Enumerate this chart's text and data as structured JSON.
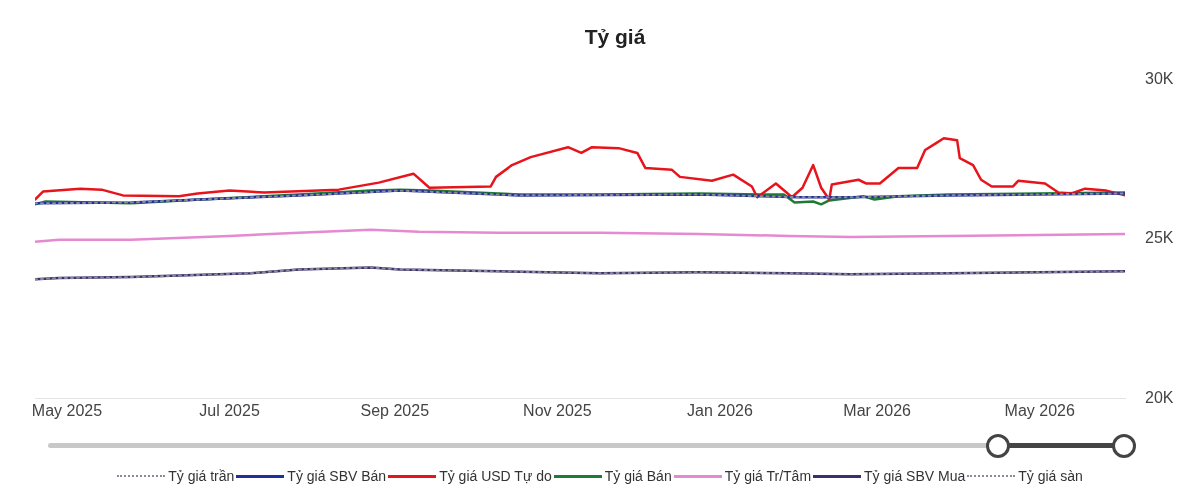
{
  "chart_data": {
    "type": "line",
    "title": "Tỷ giá",
    "xlim": [
      "2025-04-19",
      "2026-06-02"
    ],
    "xticks": [
      {
        "value": "2025-05-01",
        "label": "May 2025"
      },
      {
        "value": "2025-07-01",
        "label": "Jul 2025"
      },
      {
        "value": "2025-09-01",
        "label": "Sep 2025"
      },
      {
        "value": "2025-11-01",
        "label": "Nov 2025"
      },
      {
        "value": "2026-01-01",
        "label": "Jan 2026"
      },
      {
        "value": "2026-03-01",
        "label": "Mar 2026"
      },
      {
        "value": "2026-05-01",
        "label": "May 2026"
      }
    ],
    "ylim": [
      20000,
      30000
    ],
    "yticks": [
      {
        "value": 20000,
        "label": "20K"
      },
      {
        "value": 25000,
        "label": "25K"
      },
      {
        "value": 30000,
        "label": "30K"
      }
    ],
    "grid": false,
    "legend": "bottom",
    "series": [
      {
        "name": "Tỷ giá trần",
        "color": "#8a8a9a",
        "line_style": "dotted",
        "x": [
          "2025-04-19",
          "2025-05-25",
          "2025-06-20",
          "2025-07-27",
          "2025-09-03",
          "2025-10-18",
          "2025-12-24",
          "2026-01-31",
          "2026-02-19",
          "2026-03-28",
          "2026-06-02"
        ],
        "values": [
          26110,
          26140,
          26230,
          26360,
          26510,
          26360,
          26390,
          26300,
          26300,
          26360,
          26420
        ]
      },
      {
        "name": "Tỷ giá SBV Bán",
        "color": "#1f2f9c",
        "line_style": "solid",
        "x": [
          "2025-04-19",
          "2025-05-25",
          "2025-06-20",
          "2025-07-27",
          "2025-09-03",
          "2025-10-18",
          "2025-12-24",
          "2026-01-31",
          "2026-02-19",
          "2026-03-28",
          "2026-06-02"
        ],
        "values": [
          26110,
          26140,
          26230,
          26360,
          26510,
          26360,
          26390,
          26300,
          26300,
          26360,
          26420
        ]
      },
      {
        "name": "Tỷ giá USD Tự do",
        "color": "#e8141c",
        "line_style": "solid",
        "x": [
          "2025-04-19",
          "2025-04-22",
          "2025-05-06",
          "2025-05-14",
          "2025-05-22",
          "2025-06-12",
          "2025-06-19",
          "2025-07-01",
          "2025-07-14",
          "2025-08-11",
          "2025-08-26",
          "2025-09-08",
          "2025-09-14",
          "2025-10-07",
          "2025-10-09",
          "2025-10-15",
          "2025-10-22",
          "2025-11-05",
          "2025-11-10",
          "2025-11-14",
          "2025-11-24",
          "2025-12-01",
          "2025-12-04",
          "2025-12-14",
          "2025-12-17",
          "2025-12-29",
          "2026-01-06",
          "2026-01-13",
          "2026-01-15",
          "2026-01-22",
          "2026-01-26",
          "2026-01-28",
          "2026-02-01",
          "2026-02-05",
          "2026-02-08",
          "2026-02-11",
          "2026-02-12",
          "2026-02-22",
          "2026-02-25",
          "2026-03-02",
          "2026-03-09",
          "2026-03-16",
          "2026-03-19",
          "2026-03-23",
          "2026-03-26",
          "2026-03-31",
          "2026-04-01",
          "2026-04-06",
          "2026-04-09",
          "2026-04-13",
          "2026-04-21",
          "2026-04-23",
          "2026-05-03",
          "2026-05-08",
          "2026-05-13",
          "2026-05-18",
          "2026-05-26",
          "2026-06-02"
        ],
        "values": [
          26230,
          26480,
          26570,
          26540,
          26360,
          26330,
          26420,
          26510,
          26450,
          26540,
          26760,
          27040,
          26600,
          26640,
          26940,
          27310,
          27560,
          27870,
          27690,
          27870,
          27840,
          27690,
          27220,
          27160,
          26940,
          26820,
          27010,
          26640,
          26300,
          26730,
          26450,
          26300,
          26600,
          27310,
          26600,
          26230,
          26700,
          26850,
          26730,
          26730,
          27220,
          27220,
          27780,
          27990,
          28150,
          28090,
          27530,
          27310,
          26850,
          26640,
          26640,
          26820,
          26730,
          26450,
          26420,
          26570,
          26510,
          26360
        ]
      },
      {
        "name": "Tỷ giá Bán",
        "color": "#1e7b34",
        "line_style": "solid",
        "x": [
          "2025-04-19",
          "2025-04-23",
          "2025-05-25",
          "2025-06-20",
          "2025-07-27",
          "2025-08-23",
          "2025-09-03",
          "2025-09-14",
          "2025-10-18",
          "2025-11-17",
          "2025-12-24",
          "2026-01-16",
          "2026-01-25",
          "2026-01-29",
          "2026-02-05",
          "2026-02-08",
          "2026-02-11",
          "2026-02-24",
          "2026-02-28",
          "2026-03-09",
          "2026-03-28",
          "2026-06-02"
        ],
        "values": [
          26080,
          26170,
          26110,
          26230,
          26390,
          26510,
          26540,
          26510,
          26390,
          26390,
          26420,
          26390,
          26390,
          26140,
          26170,
          26080,
          26200,
          26330,
          26230,
          26330,
          26390,
          26450
        ]
      },
      {
        "name": "Tỷ giá Tr/Tâm",
        "color": "#e58ad0",
        "line_style": "solid",
        "x": [
          "2025-04-19",
          "2025-04-28",
          "2025-05-25",
          "2025-07-01",
          "2025-07-27",
          "2025-08-23",
          "2025-09-10",
          "2025-10-10",
          "2025-11-17",
          "2025-12-24",
          "2026-01-27",
          "2026-02-19",
          "2026-03-28",
          "2026-06-02"
        ],
        "values": [
          24910,
          24970,
          24970,
          25090,
          25190,
          25280,
          25220,
          25190,
          25190,
          25150,
          25090,
          25060,
          25090,
          25150
        ]
      },
      {
        "name": "Tỷ giá SBV Mua",
        "color": "#3c2f6e",
        "line_style": "solid",
        "x": [
          "2025-04-19",
          "2025-04-28",
          "2025-05-25",
          "2025-07-09",
          "2025-07-27",
          "2025-08-23",
          "2025-09-03",
          "2025-10-10",
          "2025-11-17",
          "2025-12-24",
          "2026-01-27",
          "2026-02-19",
          "2026-03-28",
          "2026-06-02"
        ],
        "values": [
          23730,
          23770,
          23800,
          23920,
          24040,
          24100,
          24040,
          23980,
          23920,
          23950,
          23920,
          23890,
          23920,
          23980
        ]
      },
      {
        "name": "Tỷ giá sàn",
        "color": "#8a8a9a",
        "line_style": "dotted",
        "x": [
          "2025-04-19",
          "2025-04-28",
          "2025-05-25",
          "2025-07-09",
          "2025-07-27",
          "2025-08-23",
          "2025-09-03",
          "2025-10-10",
          "2025-11-17",
          "2025-12-24",
          "2026-01-27",
          "2026-02-19",
          "2026-03-28",
          "2026-06-02"
        ],
        "values": [
          23730,
          23770,
          23800,
          23920,
          24040,
          24100,
          24040,
          23980,
          23920,
          23950,
          23920,
          23890,
          23920,
          23980
        ]
      }
    ]
  }
}
